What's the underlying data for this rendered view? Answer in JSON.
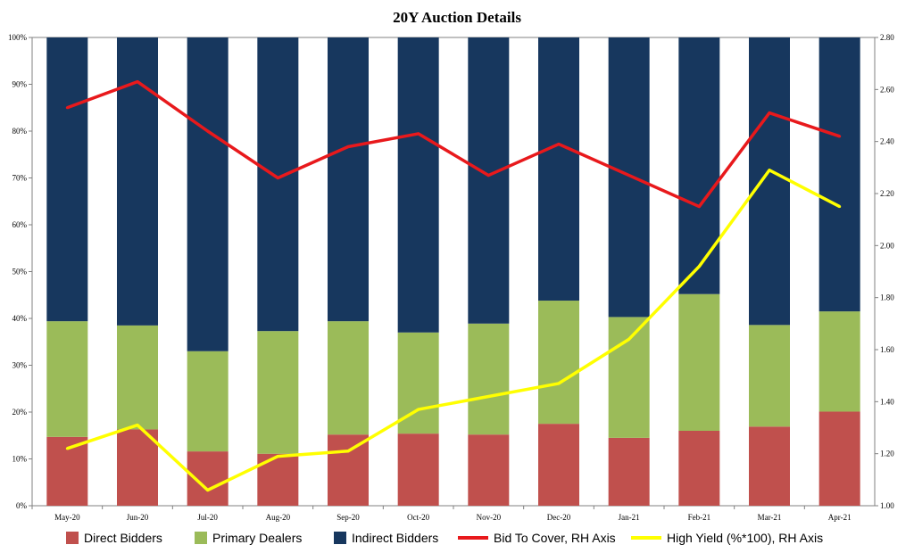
{
  "chart_data": {
    "type": "bar",
    "stacked": true,
    "title": "20Y Auction Details",
    "categories": [
      "May-20",
      "Jun-20",
      "Jul-20",
      "Aug-20",
      "Sep-20",
      "Oct-20",
      "Nov-20",
      "Dec-20",
      "Jan-21",
      "Feb-21",
      "Mar-21",
      "Apr-21"
    ],
    "left_axis": {
      "ylim": [
        0,
        100
      ],
      "ticks": [
        "0%",
        "10%",
        "20%",
        "30%",
        "40%",
        "50%",
        "60%",
        "70%",
        "80%",
        "90%",
        "100%"
      ]
    },
    "right_axis": {
      "ylim": [
        1.0,
        2.8
      ],
      "ticks": [
        "1.00",
        "1.20",
        "1.40",
        "1.60",
        "1.80",
        "2.00",
        "2.20",
        "2.40",
        "2.60",
        "2.80"
      ]
    },
    "bar_series": [
      {
        "name": "Direct Bidders",
        "color": "#c0504d",
        "values": [
          14.7,
          16.3,
          11.6,
          11.1,
          15.2,
          15.4,
          15.2,
          17.5,
          14.5,
          16.0,
          16.9,
          20.1
        ]
      },
      {
        "name": "Primary Dealers",
        "color": "#9bbb59",
        "values": [
          24.7,
          22.2,
          21.4,
          26.2,
          24.2,
          21.6,
          23.7,
          26.3,
          25.8,
          29.2,
          21.7,
          21.4
        ]
      },
      {
        "name": "Indirect Bidders",
        "color": "#17375e",
        "values": [
          60.6,
          61.5,
          67.0,
          62.7,
          60.6,
          63.0,
          61.1,
          56.2,
          59.7,
          54.8,
          61.4,
          58.5
        ]
      }
    ],
    "line_series": [
      {
        "name": "Bid To Cover, RH Axis",
        "color": "#e8191c",
        "axis": "right",
        "values": [
          2.53,
          2.63,
          2.44,
          2.26,
          2.38,
          2.43,
          2.27,
          2.39,
          2.27,
          2.15,
          2.51,
          2.42
        ]
      },
      {
        "name": "High Yield (%*100), RH Axis",
        "color": "#ffff00",
        "axis": "right",
        "values": [
          1.22,
          1.31,
          1.06,
          1.19,
          1.21,
          1.37,
          1.42,
          1.47,
          1.64,
          1.92,
          2.29,
          2.15
        ]
      }
    ],
    "legend_position": "bottom",
    "grid": false
  }
}
